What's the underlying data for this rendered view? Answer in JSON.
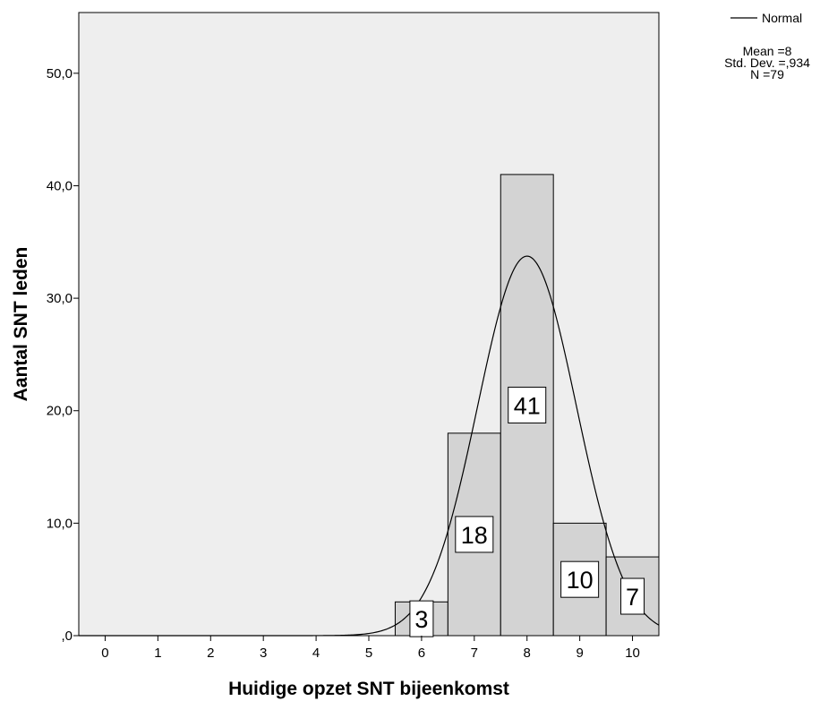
{
  "chart_data": {
    "type": "bar",
    "title": "",
    "xlabel": "Huidige opzet SNT bijeenkomst",
    "ylabel": "Aantal SNT leden",
    "categories": [
      6,
      7,
      8,
      9,
      10
    ],
    "values": [
      3,
      18,
      41,
      10,
      7
    ],
    "data_labels": [
      "3",
      "18",
      "41",
      "10",
      "7"
    ],
    "x_ticks": [
      "0",
      "1",
      "2",
      "3",
      "4",
      "5",
      "6",
      "7",
      "8",
      "9",
      "10"
    ],
    "y_ticks": [
      {
        "value": 0,
        "label": ",0"
      },
      {
        "value": 10,
        "label": "10,0"
      },
      {
        "value": 20,
        "label": "20,0"
      },
      {
        "value": 30,
        "label": "30,0"
      },
      {
        "value": 40,
        "label": "40,0"
      },
      {
        "value": 50,
        "label": "50,0"
      }
    ],
    "xlim": [
      -0.5,
      10.5
    ],
    "ylim": [
      0,
      55.4
    ],
    "normal_curve": {
      "mean": 8,
      "std": 0.934,
      "n": 79,
      "bin_width": 1
    },
    "legend": {
      "line_label": "Normal",
      "stats": [
        "Mean =8",
        "Std. Dev. =,934",
        "N =79"
      ],
      "position": "top-right"
    },
    "colors": {
      "plot_bg": "#eeeeee",
      "bar_fill": "#d3d3d3",
      "stroke": "#000000",
      "label_box": "#ffffff"
    },
    "grid": false
  }
}
